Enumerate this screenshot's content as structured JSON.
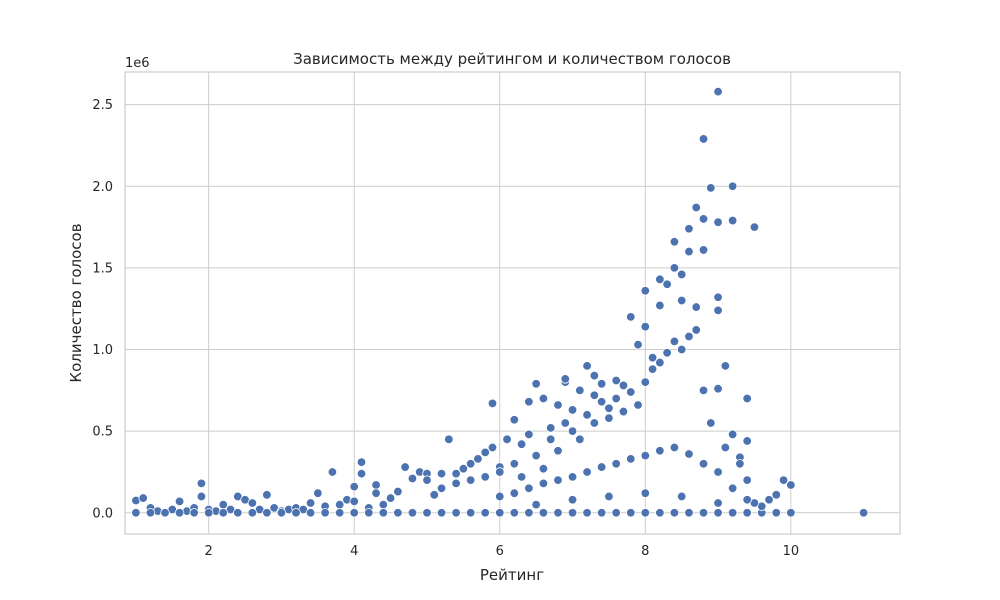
{
  "chart_data": {
    "type": "scatter",
    "title": "Зависимость между рейтингом и количеством голосов",
    "xlabel": "Рейтинг",
    "ylabel": "Количество голосов",
    "y_offset_label": "1e6",
    "xlim": [
      0.85,
      11.5
    ],
    "ylim": [
      -0.13,
      2.7
    ],
    "x_ticks": [
      2,
      4,
      6,
      8,
      10
    ],
    "x_tick_labels": [
      "2",
      "4",
      "6",
      "8",
      "10"
    ],
    "y_ticks": [
      0.0,
      0.5,
      1.0,
      1.5,
      2.0,
      2.5
    ],
    "y_tick_labels": [
      "0.0",
      "0.5",
      "1.0",
      "1.5",
      "2.0",
      "2.5"
    ],
    "grid": true,
    "marker_color": "#4c72b0",
    "points_units": "y in millions of votes",
    "points": [
      [
        1.0,
        0.0
      ],
      [
        1.0,
        0.075
      ],
      [
        1.1,
        0.09
      ],
      [
        1.2,
        0.03
      ],
      [
        1.3,
        0.01
      ],
      [
        1.4,
        0.0
      ],
      [
        1.5,
        0.02
      ],
      [
        1.6,
        0.07
      ],
      [
        1.7,
        0.01
      ],
      [
        1.8,
        0.03
      ],
      [
        1.9,
        0.1
      ],
      [
        1.9,
        0.18
      ],
      [
        2.0,
        0.02
      ],
      [
        2.1,
        0.01
      ],
      [
        2.2,
        0.05
      ],
      [
        2.3,
        0.02
      ],
      [
        2.4,
        0.1
      ],
      [
        2.5,
        0.08
      ],
      [
        2.6,
        0.06
      ],
      [
        2.7,
        0.02
      ],
      [
        2.8,
        0.11
      ],
      [
        2.9,
        0.03
      ],
      [
        3.0,
        0.01
      ],
      [
        3.1,
        0.02
      ],
      [
        3.2,
        0.03
      ],
      [
        3.3,
        0.02
      ],
      [
        3.4,
        0.06
      ],
      [
        3.5,
        0.12
      ],
      [
        3.6,
        0.04
      ],
      [
        3.7,
        0.25
      ],
      [
        3.8,
        0.05
      ],
      [
        3.9,
        0.08
      ],
      [
        4.0,
        0.07
      ],
      [
        4.0,
        0.16
      ],
      [
        4.1,
        0.31
      ],
      [
        4.1,
        0.24
      ],
      [
        4.2,
        0.03
      ],
      [
        4.3,
        0.17
      ],
      [
        4.3,
        0.12
      ],
      [
        4.4,
        0.05
      ],
      [
        4.5,
        0.09
      ],
      [
        4.6,
        0.13
      ],
      [
        4.7,
        0.28
      ],
      [
        4.8,
        0.21
      ],
      [
        4.9,
        0.25
      ],
      [
        5.0,
        0.24
      ],
      [
        5.0,
        0.2
      ],
      [
        1.0,
        0.0
      ],
      [
        1.2,
        0.0
      ],
      [
        1.4,
        0.0
      ],
      [
        1.6,
        0.0
      ],
      [
        1.8,
        0.0
      ],
      [
        2.0,
        0.0
      ],
      [
        2.2,
        0.0
      ],
      [
        2.4,
        0.0
      ],
      [
        2.6,
        0.0
      ],
      [
        2.8,
        0.0
      ],
      [
        3.0,
        0.0
      ],
      [
        3.2,
        0.0
      ],
      [
        3.4,
        0.0
      ],
      [
        3.6,
        0.0
      ],
      [
        3.8,
        0.0
      ],
      [
        4.0,
        0.0
      ],
      [
        4.2,
        0.0
      ],
      [
        4.4,
        0.0
      ],
      [
        4.6,
        0.0
      ],
      [
        4.8,
        0.0
      ],
      [
        5.0,
        0.0
      ],
      [
        5.2,
        0.0
      ],
      [
        5.4,
        0.0
      ],
      [
        5.6,
        0.0
      ],
      [
        5.8,
        0.0
      ],
      [
        6.0,
        0.0
      ],
      [
        6.2,
        0.0
      ],
      [
        6.4,
        0.0
      ],
      [
        6.6,
        0.0
      ],
      [
        6.8,
        0.0
      ],
      [
        7.0,
        0.0
      ],
      [
        7.2,
        0.0
      ],
      [
        7.4,
        0.0
      ],
      [
        7.6,
        0.0
      ],
      [
        7.8,
        0.0
      ],
      [
        8.0,
        0.0
      ],
      [
        8.2,
        0.0
      ],
      [
        8.4,
        0.0
      ],
      [
        8.6,
        0.0
      ],
      [
        8.8,
        0.0
      ],
      [
        9.0,
        0.0
      ],
      [
        9.2,
        0.0
      ],
      [
        9.4,
        0.0
      ],
      [
        9.6,
        0.0
      ],
      [
        9.8,
        0.0
      ],
      [
        10.0,
        0.0
      ],
      [
        5.1,
        0.11
      ],
      [
        5.2,
        0.24
      ],
      [
        5.3,
        0.45
      ],
      [
        5.4,
        0.24
      ],
      [
        5.5,
        0.27
      ],
      [
        5.6,
        0.3
      ],
      [
        5.7,
        0.33
      ],
      [
        5.8,
        0.37
      ],
      [
        5.9,
        0.67
      ],
      [
        5.9,
        0.4
      ],
      [
        6.0,
        0.28
      ],
      [
        6.1,
        0.45
      ],
      [
        6.2,
        0.57
      ],
      [
        6.3,
        0.42
      ],
      [
        6.4,
        0.48
      ],
      [
        6.4,
        0.68
      ],
      [
        6.5,
        0.79
      ],
      [
        6.6,
        0.7
      ],
      [
        6.7,
        0.52
      ],
      [
        6.8,
        0.66
      ],
      [
        6.9,
        0.8
      ],
      [
        6.9,
        0.82
      ],
      [
        7.0,
        0.63
      ],
      [
        7.1,
        0.75
      ],
      [
        7.2,
        0.9
      ],
      [
        7.3,
        0.84
      ],
      [
        7.3,
        0.72
      ],
      [
        7.4,
        0.79
      ],
      [
        7.5,
        0.64
      ],
      [
        7.6,
        0.81
      ],
      [
        7.7,
        0.78
      ],
      [
        7.8,
        1.2
      ],
      [
        7.9,
        1.03
      ],
      [
        8.0,
        1.14
      ],
      [
        8.0,
        1.36
      ],
      [
        8.1,
        0.95
      ],
      [
        8.2,
        1.43
      ],
      [
        8.2,
        1.27
      ],
      [
        8.3,
        1.4
      ],
      [
        8.4,
        1.66
      ],
      [
        8.4,
        1.5
      ],
      [
        8.5,
        1.3
      ],
      [
        8.5,
        1.46
      ],
      [
        8.6,
        1.74
      ],
      [
        8.6,
        1.6
      ],
      [
        8.7,
        1.87
      ],
      [
        8.7,
        1.26
      ],
      [
        8.8,
        2.29
      ],
      [
        8.8,
        1.8
      ],
      [
        8.8,
        1.61
      ],
      [
        8.9,
        1.99
      ],
      [
        9.0,
        2.58
      ],
      [
        9.0,
        1.78
      ],
      [
        9.0,
        1.32
      ],
      [
        9.0,
        1.24
      ],
      [
        9.1,
        0.9
      ],
      [
        9.2,
        2.0
      ],
      [
        9.2,
        1.79
      ],
      [
        9.3,
        0.34
      ],
      [
        9.4,
        0.7
      ],
      [
        9.4,
        0.44
      ],
      [
        9.5,
        1.75
      ],
      [
        9.6,
        0.04
      ],
      [
        9.7,
        0.08
      ],
      [
        9.8,
        0.11
      ],
      [
        9.9,
        0.2
      ],
      [
        10.0,
        0.17
      ],
      [
        11.0,
        0.0
      ],
      [
        5.2,
        0.15
      ],
      [
        5.4,
        0.18
      ],
      [
        5.6,
        0.2
      ],
      [
        5.8,
        0.22
      ],
      [
        6.0,
        0.25
      ],
      [
        6.2,
        0.3
      ],
      [
        6.3,
        0.22
      ],
      [
        6.5,
        0.35
      ],
      [
        6.6,
        0.27
      ],
      [
        6.7,
        0.45
      ],
      [
        6.8,
        0.38
      ],
      [
        6.9,
        0.55
      ],
      [
        7.0,
        0.5
      ],
      [
        7.1,
        0.45
      ],
      [
        7.2,
        0.6
      ],
      [
        7.3,
        0.55
      ],
      [
        7.4,
        0.68
      ],
      [
        7.5,
        0.58
      ],
      [
        7.6,
        0.7
      ],
      [
        7.7,
        0.62
      ],
      [
        7.8,
        0.74
      ],
      [
        7.9,
        0.66
      ],
      [
        8.0,
        0.8
      ],
      [
        8.1,
        0.88
      ],
      [
        8.2,
        0.92
      ],
      [
        8.3,
        0.98
      ],
      [
        8.4,
        1.05
      ],
      [
        8.5,
        1.0
      ],
      [
        8.6,
        1.08
      ],
      [
        8.7,
        1.12
      ],
      [
        8.8,
        0.75
      ],
      [
        8.9,
        0.55
      ],
      [
        9.0,
        0.76
      ],
      [
        9.1,
        0.4
      ],
      [
        9.2,
        0.48
      ],
      [
        9.3,
        0.3
      ],
      [
        9.4,
        0.2
      ],
      [
        9.5,
        0.06
      ],
      [
        6.0,
        0.1
      ],
      [
        6.2,
        0.12
      ],
      [
        6.4,
        0.15
      ],
      [
        6.6,
        0.18
      ],
      [
        6.8,
        0.2
      ],
      [
        7.0,
        0.22
      ],
      [
        7.2,
        0.25
      ],
      [
        7.4,
        0.28
      ],
      [
        7.6,
        0.3
      ],
      [
        7.8,
        0.33
      ],
      [
        8.0,
        0.35
      ],
      [
        8.2,
        0.38
      ],
      [
        8.4,
        0.4
      ],
      [
        8.6,
        0.36
      ],
      [
        8.8,
        0.3
      ],
      [
        9.0,
        0.25
      ],
      [
        9.2,
        0.15
      ],
      [
        9.4,
        0.08
      ],
      [
        6.5,
        0.05
      ],
      [
        7.0,
        0.08
      ],
      [
        7.5,
        0.1
      ],
      [
        8.0,
        0.12
      ],
      [
        8.5,
        0.1
      ],
      [
        9.0,
        0.06
      ]
    ]
  }
}
